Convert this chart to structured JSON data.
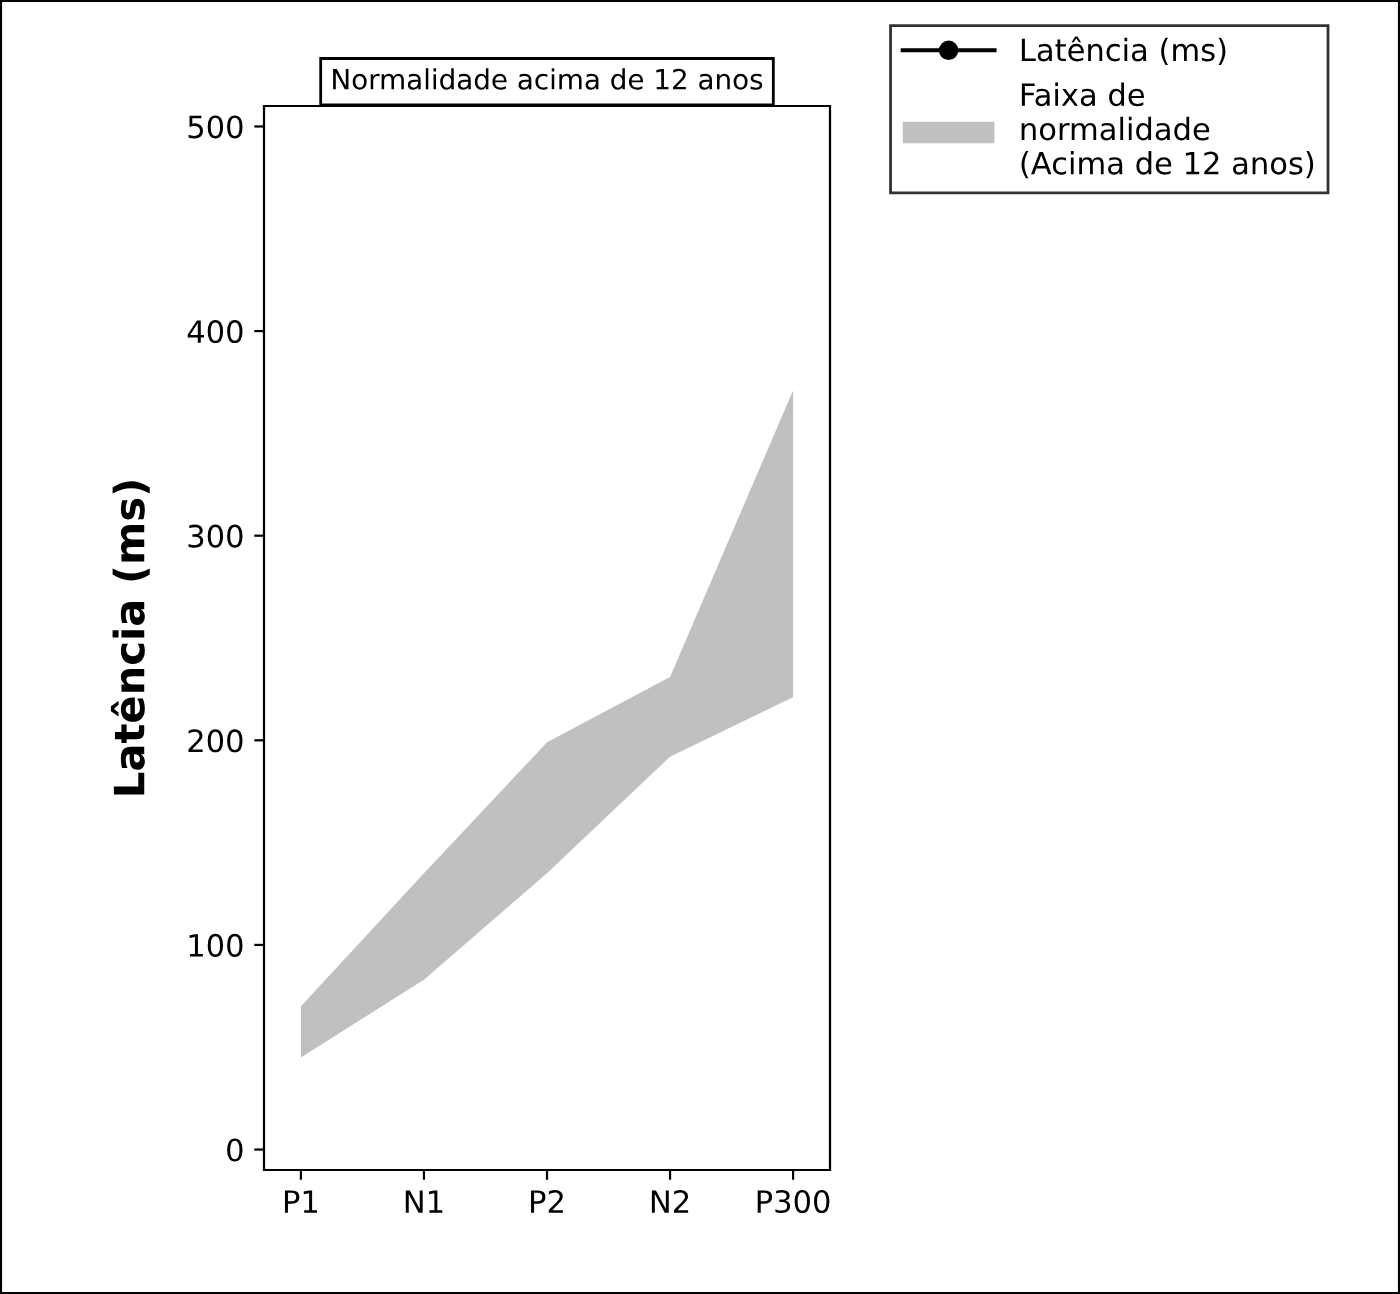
{
  "chart_data": {
    "type": "line",
    "title": "Normalidade acima de 12 anos",
    "ylabel": "Latência (ms)",
    "categories": [
      "P1",
      "N1",
      "P2",
      "N2",
      "P300"
    ],
    "series": [
      {
        "name": "Latência (ms)",
        "color": "#000000",
        "marker": "circle",
        "values": [
          null,
          null,
          null,
          null,
          null
        ]
      },
      {
        "name": "Faixa de\nnormalidade\n(Acima de 12 anos)",
        "type": "area",
        "color": "#c0c0c0",
        "values": [
          null,
          null,
          null,
          null,
          null
        ],
        "lower": [
          45,
          83,
          135,
          192,
          221
        ],
        "upper": [
          70,
          135,
          199,
          231,
          371
        ]
      }
    ],
    "ylim": [
      -10,
      510
    ],
    "yticks": [
      0,
      100,
      200,
      300,
      400,
      500
    ],
    "grid": false,
    "legend": "top right"
  }
}
